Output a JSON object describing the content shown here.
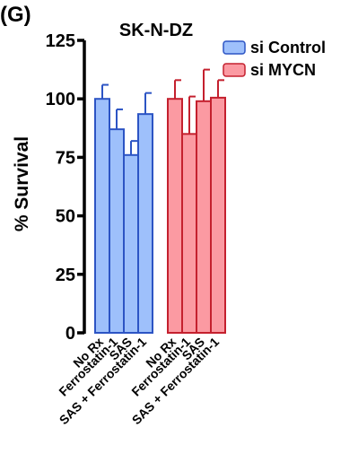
{
  "panel_label": "(G)",
  "chart_data": {
    "type": "bar",
    "title": "SK-N-DZ",
    "xlabel": "",
    "ylabel": "% Survival",
    "ylim": [
      0,
      125
    ],
    "yticks": [
      0,
      25,
      50,
      75,
      100,
      125
    ],
    "grid": false,
    "legend_position": "top-right",
    "categories": [
      "No Rx",
      "Ferrostatin-1",
      "SAS",
      "SAS + Ferrostatin-1"
    ],
    "series": [
      {
        "name": "si Control",
        "fill": "#9ec0fb",
        "stroke": "#2c54c4",
        "values": [
          100,
          87,
          76,
          93.5
        ],
        "errors": [
          6,
          8.5,
          6,
          9
        ]
      },
      {
        "name": "si MYCN",
        "fill": "#fb9aa2",
        "stroke": "#c4202e",
        "values": [
          100,
          85,
          99,
          100.5
        ],
        "errors": [
          8,
          16,
          13.5,
          7.5
        ]
      }
    ]
  }
}
